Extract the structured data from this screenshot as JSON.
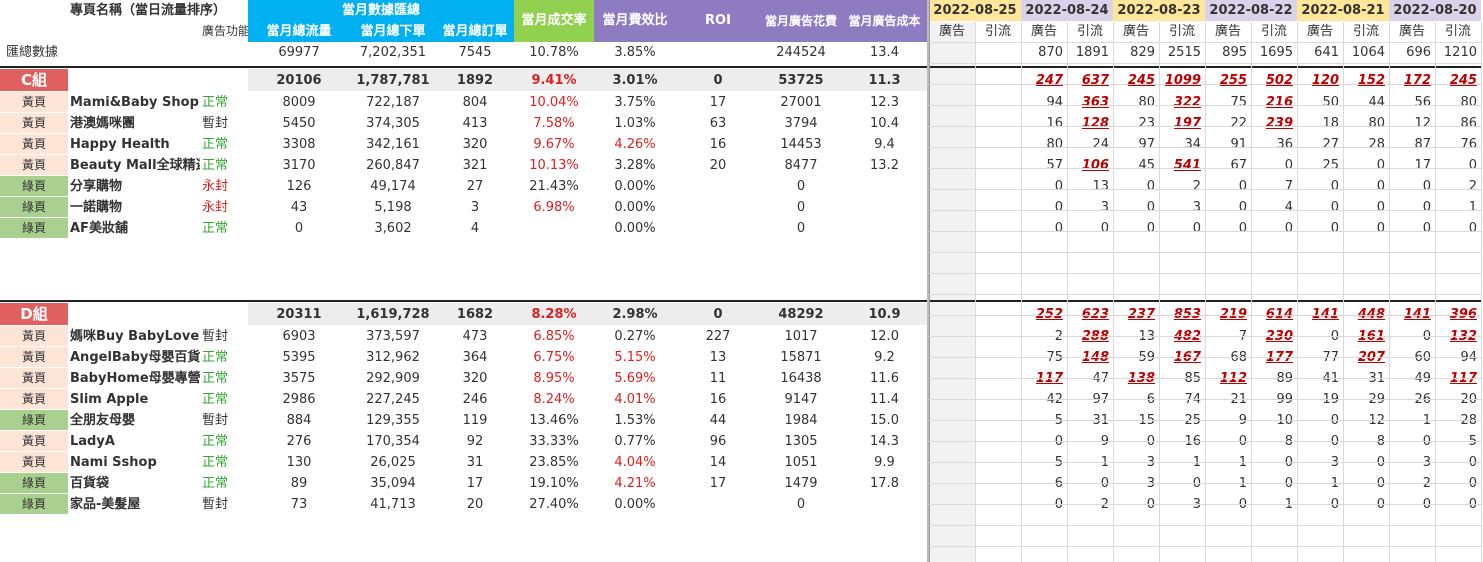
{
  "header": {
    "name_col": "專頁名稱（當日流量排序）",
    "ad_func": "廣告功能",
    "summary_title": "當月數據匯總",
    "cols": [
      "當月總流量",
      "當月總下單",
      "當月總訂單"
    ],
    "conv": "當月成交率",
    "cost_ratio": "當月費效比",
    "roi": "ROI",
    "ad_spend": "當月廣告花費",
    "ad_cost": "當月廣告成本"
  },
  "dates": [
    "2022-08-25",
    "2022-08-24",
    "2022-08-23",
    "2022-08-22",
    "2022-08-21",
    "2022-08-20"
  ],
  "date_colors": [
    "#ffe699",
    "#d9d2e9",
    "#ffe699",
    "#d9d2e9",
    "#ffe699",
    "#d9d2e9"
  ],
  "sub_labels": [
    "廣告",
    "引流"
  ],
  "total": {
    "label": "匯總數據",
    "v": [
      "69977",
      "7,202,351",
      "7545",
      "10.78%",
      "3.85%",
      "",
      "244524",
      "13.4"
    ],
    "d": [
      "",
      "",
      "870",
      "1891",
      "829",
      "2515",
      "895",
      "1695",
      "641",
      "1064",
      "696",
      "1210"
    ]
  },
  "groups": [
    {
      "name": "C組",
      "sum": [
        "20106",
        "1,787,781",
        "1892",
        "9.41%",
        "3.01%",
        "0",
        "53725",
        "11.3"
      ],
      "sumd": [
        "",
        "",
        "247",
        "637",
        "245",
        "1099",
        "255",
        "502",
        "120",
        "152",
        "172",
        "245"
      ],
      "rows": [
        {
          "tag": "黃頁",
          "tc": "y",
          "name": "Mami&Baby Shop",
          "status": "正常",
          "sc": "green",
          "v": [
            "8009",
            "722,187",
            "804",
            "10.04%",
            "3.75%",
            "17",
            "27001",
            "12.3"
          ],
          "conv_red": true,
          "cost_red": false,
          "d": [
            "",
            "",
            "94",
            "363",
            "80",
            "322",
            "75",
            "216",
            "50",
            "44",
            "56",
            "80"
          ],
          "dr": [
            3,
            5,
            7
          ]
        },
        {
          "tag": "黃頁",
          "tc": "y",
          "name": "港澳媽咪團",
          "status": "暫封",
          "sc": "",
          "v": [
            "5450",
            "374,305",
            "413",
            "7.58%",
            "1.03%",
            "63",
            "3794",
            "10.4"
          ],
          "conv_red": true,
          "cost_red": false,
          "d": [
            "",
            "",
            "16",
            "128",
            "23",
            "197",
            "22",
            "239",
            "18",
            "80",
            "12",
            "86"
          ],
          "dr": [
            3,
            5,
            7
          ]
        },
        {
          "tag": "黃頁",
          "tc": "y",
          "name": "Happy Health",
          "status": "正常",
          "sc": "green",
          "v": [
            "3308",
            "342,161",
            "320",
            "9.67%",
            "4.26%",
            "16",
            "14453",
            "9.4"
          ],
          "conv_red": true,
          "cost_red": true,
          "d": [
            "",
            "",
            "80",
            "24",
            "97",
            "34",
            "91",
            "36",
            "27",
            "28",
            "87",
            "76"
          ],
          "dr": []
        },
        {
          "tag": "黃頁",
          "tc": "y",
          "name": "Beauty Mall全球精選",
          "status": "正常",
          "sc": "green",
          "v": [
            "3170",
            "260,847",
            "321",
            "10.13%",
            "3.28%",
            "20",
            "8477",
            "13.2"
          ],
          "conv_red": true,
          "cost_red": false,
          "d": [
            "",
            "",
            "57",
            "106",
            "45",
            "541",
            "67",
            "0",
            "25",
            "0",
            "17",
            "0"
          ],
          "dr": [
            3,
            5
          ]
        },
        {
          "tag": "綠頁",
          "tc": "g",
          "name": "分享購物",
          "status": "永封",
          "sc": "red",
          "v": [
            "126",
            "49,174",
            "27",
            "21.43%",
            "0.00%",
            "",
            "0",
            ""
          ],
          "conv_red": false,
          "cost_red": false,
          "d": [
            "",
            "",
            "0",
            "13",
            "0",
            "2",
            "0",
            "7",
            "0",
            "0",
            "0",
            "2"
          ],
          "dr": []
        },
        {
          "tag": "綠頁",
          "tc": "g",
          "name": "一諾購物",
          "status": "永封",
          "sc": "red",
          "v": [
            "43",
            "5,198",
            "3",
            "6.98%",
            "0.00%",
            "",
            "0",
            ""
          ],
          "conv_red": true,
          "cost_red": false,
          "d": [
            "",
            "",
            "0",
            "3",
            "0",
            "3",
            "0",
            "4",
            "0",
            "0",
            "0",
            "1"
          ],
          "dr": []
        },
        {
          "tag": "綠頁",
          "tc": "g",
          "name": "AF美妝舖",
          "status": "正常",
          "sc": "green",
          "v": [
            "0",
            "3,602",
            "4",
            "",
            "0.00%",
            "",
            "0",
            ""
          ],
          "conv_red": false,
          "cost_red": false,
          "d": [
            "",
            "",
            "0",
            "0",
            "0",
            "0",
            "0",
            "0",
            "0",
            "0",
            "0",
            "0"
          ],
          "dr": []
        }
      ]
    },
    {
      "name": "D組",
      "sum": [
        "20311",
        "1,619,728",
        "1682",
        "8.28%",
        "2.98%",
        "0",
        "48292",
        "10.9"
      ],
      "sumd": [
        "",
        "",
        "252",
        "623",
        "237",
        "853",
        "219",
        "614",
        "141",
        "448",
        "141",
        "396"
      ],
      "rows": [
        {
          "tag": "黃頁",
          "tc": "y",
          "name": "媽咪Buy BabyLove",
          "status": "暫封",
          "sc": "",
          "v": [
            "6903",
            "373,597",
            "473",
            "6.85%",
            "0.27%",
            "227",
            "1017",
            "12.0"
          ],
          "conv_red": true,
          "cost_red": false,
          "d": [
            "",
            "",
            "2",
            "288",
            "13",
            "482",
            "7",
            "230",
            "0",
            "161",
            "0",
            "132"
          ],
          "dr": [
            3,
            5,
            7,
            9,
            11
          ]
        },
        {
          "tag": "黃頁",
          "tc": "y",
          "name": "AngelBaby母嬰百貨",
          "status": "正常",
          "sc": "green",
          "v": [
            "5395",
            "312,962",
            "364",
            "6.75%",
            "5.15%",
            "13",
            "15871",
            "9.2"
          ],
          "conv_red": true,
          "cost_red": true,
          "d": [
            "",
            "",
            "75",
            "148",
            "59",
            "167",
            "68",
            "177",
            "77",
            "207",
            "60",
            "94"
          ],
          "dr": [
            3,
            5,
            7,
            9
          ]
        },
        {
          "tag": "黃頁",
          "tc": "y",
          "name": "BabyHome母嬰專營",
          "status": "正常",
          "sc": "green",
          "v": [
            "3575",
            "292,909",
            "320",
            "8.95%",
            "5.69%",
            "11",
            "16438",
            "11.6"
          ],
          "conv_red": true,
          "cost_red": true,
          "d": [
            "",
            "",
            "117",
            "47",
            "138",
            "85",
            "112",
            "89",
            "41",
            "31",
            "49",
            "117"
          ],
          "dr": [
            2,
            4,
            6,
            11
          ]
        },
        {
          "tag": "黃頁",
          "tc": "y",
          "name": "Slim Apple",
          "status": "正常",
          "sc": "green",
          "v": [
            "2986",
            "227,245",
            "246",
            "8.24%",
            "4.01%",
            "16",
            "9147",
            "11.4"
          ],
          "conv_red": true,
          "cost_red": true,
          "d": [
            "",
            "",
            "42",
            "97",
            "6",
            "74",
            "21",
            "99",
            "19",
            "29",
            "26",
            "20"
          ],
          "dr": []
        },
        {
          "tag": "綠頁",
          "tc": "g",
          "name": "全朋友母嬰",
          "status": "暫封",
          "sc": "",
          "v": [
            "884",
            "129,355",
            "119",
            "13.46%",
            "1.53%",
            "44",
            "1984",
            "15.0"
          ],
          "conv_red": false,
          "cost_red": false,
          "d": [
            "",
            "",
            "5",
            "31",
            "15",
            "25",
            "9",
            "10",
            "0",
            "12",
            "1",
            "28"
          ],
          "dr": []
        },
        {
          "tag": "黃頁",
          "tc": "y",
          "name": "LadyA",
          "status": "正常",
          "sc": "green",
          "v": [
            "276",
            "170,354",
            "92",
            "33.33%",
            "0.77%",
            "96",
            "1305",
            "14.3"
          ],
          "conv_red": false,
          "cost_red": false,
          "d": [
            "",
            "",
            "0",
            "9",
            "0",
            "16",
            "0",
            "8",
            "0",
            "8",
            "0",
            "5"
          ],
          "dr": []
        },
        {
          "tag": "黃頁",
          "tc": "y",
          "name": "Nami Sshop",
          "status": "正常",
          "sc": "green",
          "v": [
            "130",
            "26,025",
            "31",
            "23.85%",
            "4.04%",
            "14",
            "1051",
            "9.9"
          ],
          "conv_red": false,
          "cost_red": true,
          "d": [
            "",
            "",
            "5",
            "1",
            "3",
            "1",
            "1",
            "0",
            "3",
            "0",
            "3",
            "0"
          ],
          "dr": []
        },
        {
          "tag": "綠頁",
          "tc": "g",
          "name": "百貨袋",
          "status": "正常",
          "sc": "green",
          "v": [
            "89",
            "35,094",
            "17",
            "19.10%",
            "4.21%",
            "17",
            "1479",
            "17.8"
          ],
          "conv_red": false,
          "cost_red": true,
          "d": [
            "",
            "",
            "6",
            "0",
            "3",
            "0",
            "1",
            "0",
            "1",
            "0",
            "2",
            "0"
          ],
          "dr": []
        },
        {
          "tag": "綠頁",
          "tc": "g",
          "name": "家品-美髮屋",
          "status": "暫封",
          "sc": "",
          "v": [
            "73",
            "41,713",
            "20",
            "27.40%",
            "0.00%",
            "",
            "0",
            ""
          ],
          "conv_red": false,
          "cost_red": false,
          "d": [
            "",
            "",
            "0",
            "2",
            "0",
            "3",
            "0",
            "1",
            "0",
            "0",
            "0",
            "0"
          ],
          "dr": []
        }
      ]
    }
  ]
}
